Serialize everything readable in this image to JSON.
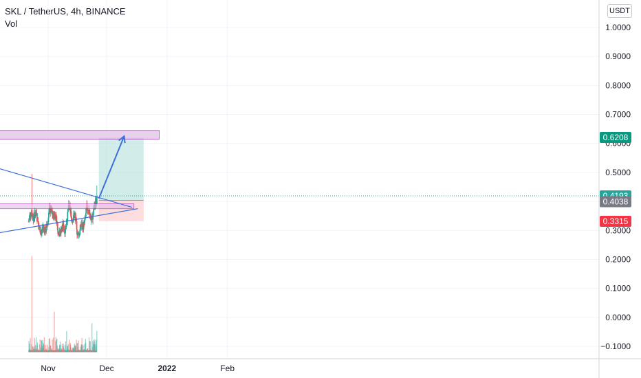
{
  "header": {
    "symbol_line": "SKL / TetherUS, 4h, BINANCE",
    "volume_label": "Vol",
    "currency": "USDT"
  },
  "colors": {
    "up": "#26a69a",
    "down": "#ef5350",
    "trendline": "#3f6fd8",
    "zone_fill": "#e1bee7",
    "zone_stroke": "#9c27b0",
    "target_fill": "#b2dfdb",
    "stop_fill": "#fcd4d4",
    "badge_target": "#089981",
    "badge_price": "#26a69a",
    "badge_entry": "#787b86",
    "badge_stop": "#f23645"
  },
  "chart_data": {
    "type": "candlestick",
    "title": "SKL / TetherUS, 4h, BINANCE",
    "y_axis": {
      "ticks": [
        "1.0000",
        "0.9000",
        "0.8000",
        "0.7000",
        "0.6000",
        "0.5000",
        "0.4000",
        "0.3000",
        "0.2000",
        "0.1000",
        "0.0000",
        "−0.1000"
      ],
      "range": [
        -0.12,
        1.02
      ]
    },
    "x_axis": {
      "ticks": [
        "Nov",
        "Dec",
        "2022",
        "Feb"
      ]
    },
    "price_badges": [
      {
        "label": "0.6208",
        "value": 0.6208,
        "role": "target"
      },
      {
        "label": "0.4193",
        "value": 0.4193,
        "role": "last-price"
      },
      {
        "label": "0.4038",
        "value": 0.4038,
        "role": "entry"
      },
      {
        "label": "0.3315",
        "value": 0.3315,
        "role": "stop"
      }
    ],
    "price_series": {
      "start": "2021-10-22",
      "interval": "4h",
      "end": "2021-11-26",
      "approx_range": [
        0.28,
        0.5
      ],
      "last_close": 0.4193
    },
    "resistance_zone": {
      "low": 0.615,
      "high": 0.645,
      "from": "2021-10-01",
      "to": "2021-12-28"
    },
    "support_zone": {
      "low": 0.375,
      "high": 0.392,
      "from": "2021-10-01",
      "to": "2021-12-15"
    },
    "triangle": {
      "upper": [
        {
          "date": "2021-10-01",
          "value": 0.525
        },
        {
          "date": "2021-12-14",
          "value": 0.38
        }
      ],
      "lower": [
        {
          "date": "2021-10-01",
          "value": 0.285
        },
        {
          "date": "2021-12-17",
          "value": 0.375
        }
      ]
    },
    "long_position": {
      "start": "2021-11-27",
      "end": "2021-12-20",
      "entry": 0.4038,
      "target": 0.6208,
      "stop": 0.3315
    },
    "projection_arrow": {
      "from": {
        "date": "2021-11-27",
        "value": 0.41
      },
      "to": {
        "date": "2021-12-10",
        "value": 0.625
      }
    }
  }
}
